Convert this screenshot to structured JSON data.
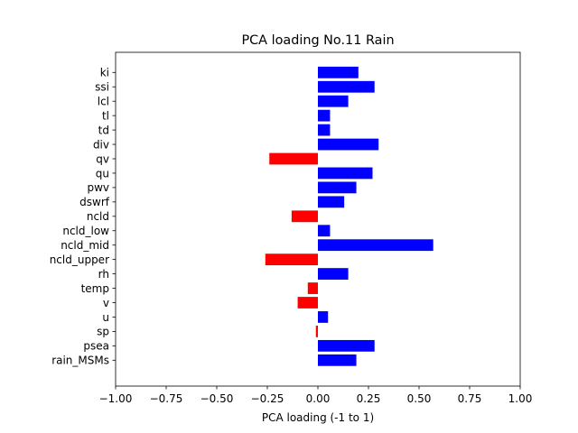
{
  "chart_data": {
    "type": "bar",
    "orientation": "horizontal",
    "title": "PCA loading No.11 Rain",
    "xlabel": "PCA loading (-1 to 1)",
    "ylabel": "",
    "xlim": [
      -1.0,
      1.0
    ],
    "xticks": [
      "−1.00",
      "−0.75",
      "−0.50",
      "−0.25",
      "0.00",
      "0.25",
      "0.50",
      "0.75",
      "1.00"
    ],
    "categories": [
      "ki",
      "ssi",
      "lcl",
      "tl",
      "td",
      "div",
      "qv",
      "qu",
      "pwv",
      "dswrf",
      "ncld",
      "ncld_low",
      "ncld_mid",
      "ncld_upper",
      "rh",
      "temp",
      "v",
      "u",
      "sp",
      "psea",
      "rain_MSMs"
    ],
    "values": [
      0.2,
      0.28,
      0.15,
      0.06,
      0.06,
      0.3,
      -0.24,
      0.27,
      0.19,
      0.13,
      -0.13,
      0.06,
      0.57,
      -0.26,
      0.15,
      -0.05,
      -0.1,
      0.05,
      -0.01,
      0.28,
      0.19
    ],
    "colors": {
      "positive": "#0000ff",
      "negative": "#ff0000"
    },
    "grid": false,
    "legend": "none"
  }
}
